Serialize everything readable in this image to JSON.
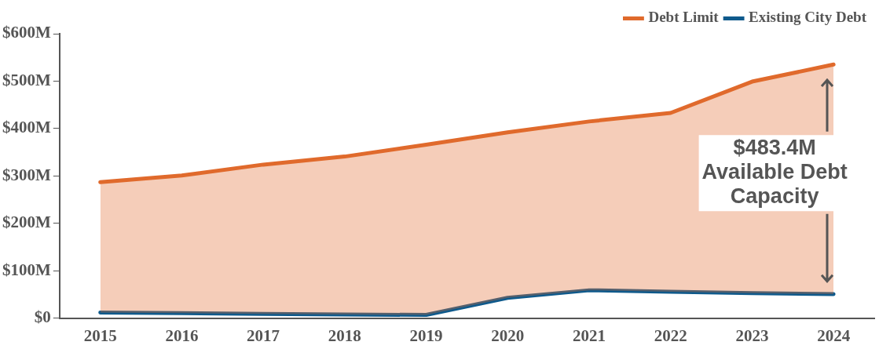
{
  "chart_data": {
    "type": "line",
    "categories": [
      "2015",
      "2016",
      "2017",
      "2018",
      "2019",
      "2020",
      "2021",
      "2022",
      "2023",
      "2024"
    ],
    "series": [
      {
        "name": "Debt Limit",
        "type": "area",
        "color": "#e06a2c",
        "values": [
          287,
          301,
          324,
          341,
          366,
          392,
          415,
          433,
          499,
          535
        ]
      },
      {
        "name": "Existing City Debt",
        "color": "#0f5a8c",
        "values": [
          12,
          11,
          9,
          8,
          7,
          43,
          59,
          56,
          53,
          51
        ]
      }
    ],
    "ylim": [
      0,
      600
    ],
    "yticks": [
      {
        "value": 0,
        "label": "$0"
      },
      {
        "value": 100,
        "label": "$100M"
      },
      {
        "value": 200,
        "label": "$200M"
      },
      {
        "value": 300,
        "label": "$300M"
      },
      {
        "value": 400,
        "label": "$400M"
      },
      {
        "value": 500,
        "label": "$500M"
      },
      {
        "value": 600,
        "label": "$600M"
      }
    ],
    "grid": false,
    "legend": "top right",
    "marker": "none",
    "annotations": [
      "$483.4M\nAvailable Debt\nCapacity"
    ]
  }
}
